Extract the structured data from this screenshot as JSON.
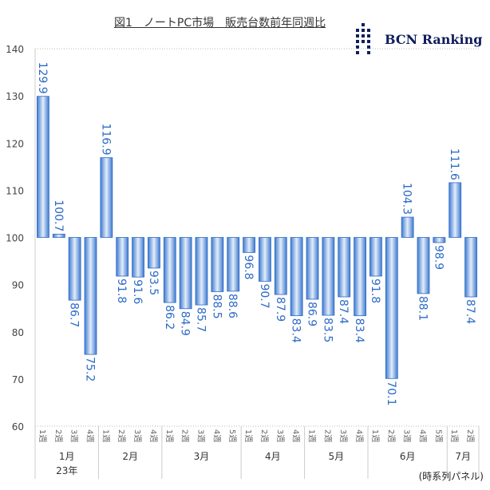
{
  "chart_data": {
    "type": "bar",
    "title": "図1　ノートPC市場　販売台数前年同週比",
    "baseline": 100,
    "ylim": [
      60,
      140
    ],
    "yticks": [
      60,
      70,
      80,
      90,
      100,
      110,
      120,
      130,
      140
    ],
    "groups": [
      {
        "label": "1月",
        "year": "23年",
        "weeks": [
          "1週",
          "2週",
          "3週",
          "4週"
        ],
        "values": [
          129.9,
          100.7,
          86.7,
          75.2
        ]
      },
      {
        "label": "2月",
        "weeks": [
          "1週",
          "2週",
          "3週",
          "4週"
        ],
        "values": [
          116.9,
          91.8,
          91.6,
          93.5
        ]
      },
      {
        "label": "3月",
        "weeks": [
          "1週",
          "2週",
          "3週",
          "4週",
          "5週"
        ],
        "values": [
          86.2,
          84.9,
          85.7,
          88.5,
          88.6
        ]
      },
      {
        "label": "4月",
        "weeks": [
          "1週",
          "2週",
          "3週",
          "4週"
        ],
        "values": [
          96.8,
          90.7,
          87.9,
          83.4
        ]
      },
      {
        "label": "5月",
        "weeks": [
          "1週",
          "2週",
          "3週",
          "4週"
        ],
        "values": [
          86.9,
          83.5,
          87.4,
          83.4
        ]
      },
      {
        "label": "6月",
        "weeks": [
          "1週",
          "2週",
          "3週",
          "4週",
          "5週"
        ],
        "values": [
          91.8,
          70.1,
          104.3,
          88.1,
          98.9
        ]
      },
      {
        "label": "7月",
        "weeks": [
          "1週",
          "2週"
        ],
        "values": [
          111.6,
          87.4
        ]
      }
    ],
    "colors": {
      "bar": "#4a86d8",
      "bar_light": "#dbe8f8",
      "label": "#2e6bc6"
    }
  },
  "logo": "BCN Ranking",
  "footnote": "(時系列パネル)"
}
